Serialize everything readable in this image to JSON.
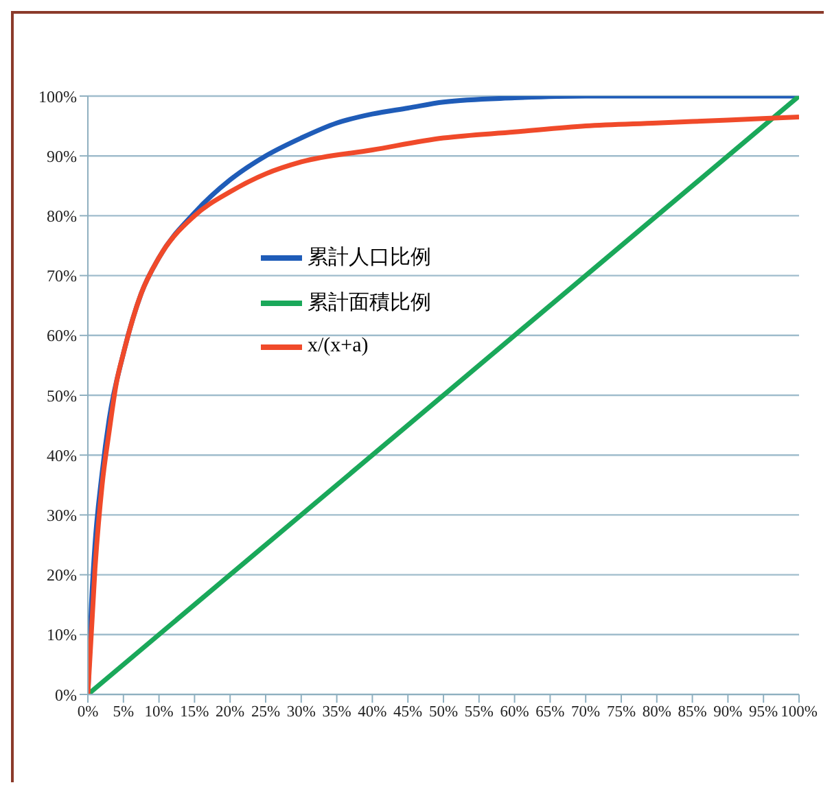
{
  "chart_data": {
    "type": "line",
    "series": [
      {
        "name": "累計人口比例",
        "color": "#1f5cb8",
        "x": [
          0,
          0.5,
          1,
          2,
          3,
          5,
          7.5,
          10,
          15,
          20,
          25,
          30,
          35,
          40,
          45,
          50,
          60,
          70,
          80,
          90,
          100
        ],
        "values": [
          0,
          15,
          25,
          37,
          46,
          57,
          67,
          73,
          80.5,
          86,
          90,
          93,
          95.5,
          97,
          98,
          99,
          99.7,
          100,
          100,
          100,
          100
        ]
      },
      {
        "name": "累計面積比例",
        "color": "#1aa85a",
        "x": [
          0,
          100
        ],
        "values": [
          0,
          100
        ]
      },
      {
        "name": "x/(x+a)",
        "color": "#f04a2a",
        "x": [
          0,
          1,
          2,
          3,
          4,
          5,
          7.5,
          10,
          15,
          20,
          25,
          30,
          40,
          50,
          60,
          70,
          80,
          90,
          100
        ],
        "values": [
          0,
          21,
          35,
          44,
          52,
          57,
          67,
          73,
          80,
          84,
          87,
          89,
          91,
          93,
          94,
          95,
          95.5,
          96,
          96.5
        ]
      }
    ],
    "xlim": [
      0,
      100
    ],
    "xticks": [
      {
        "value": 0,
        "label": "0%"
      },
      {
        "value": 5,
        "label": "5%"
      },
      {
        "value": 10,
        "label": "10%"
      },
      {
        "value": 15,
        "label": "15%"
      },
      {
        "value": 20,
        "label": "20%"
      },
      {
        "value": 25,
        "label": "25%"
      },
      {
        "value": 30,
        "label": "30%"
      },
      {
        "value": 35,
        "label": "35%"
      },
      {
        "value": 40,
        "label": "40%"
      },
      {
        "value": 45,
        "label": "45%"
      },
      {
        "value": 50,
        "label": "50%"
      },
      {
        "value": 55,
        "label": "55%"
      },
      {
        "value": 60,
        "label": "60%"
      },
      {
        "value": 65,
        "label": "65%"
      },
      {
        "value": 70,
        "label": "70%"
      },
      {
        "value": 75,
        "label": "75%"
      },
      {
        "value": 80,
        "label": "80%"
      },
      {
        "value": 85,
        "label": "85%"
      },
      {
        "value": 90,
        "label": "90%"
      },
      {
        "value": 95,
        "label": "95%"
      },
      {
        "value": 100,
        "label": "100%"
      }
    ],
    "ylim": [
      0,
      100
    ],
    "yticks": [
      {
        "value": 0,
        "label": "0%"
      },
      {
        "value": 10,
        "label": "10%"
      },
      {
        "value": 20,
        "label": "20%"
      },
      {
        "value": 30,
        "label": "30%"
      },
      {
        "value": 40,
        "label": "40%"
      },
      {
        "value": 50,
        "label": "50%"
      },
      {
        "value": 60,
        "label": "60%"
      },
      {
        "value": 70,
        "label": "70%"
      },
      {
        "value": 80,
        "label": "80%"
      },
      {
        "value": 90,
        "label": "90%"
      },
      {
        "value": 100,
        "label": "100%"
      }
    ],
    "grid": "y",
    "legend": "center",
    "marker": "none",
    "line_style": "solid"
  }
}
